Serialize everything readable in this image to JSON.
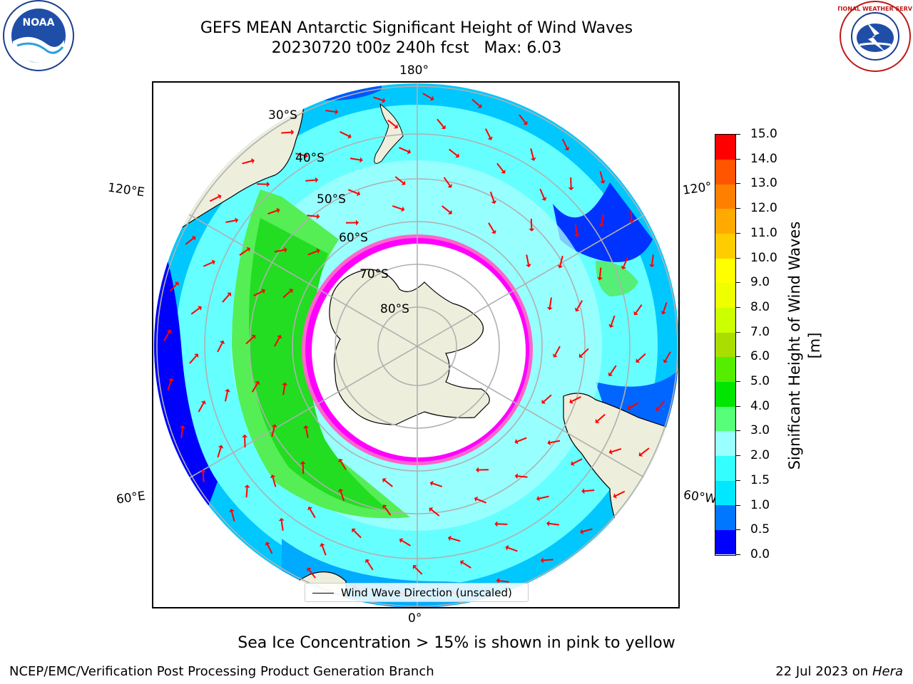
{
  "title": {
    "line1": "GEFS MEAN Antarctic Significant Height of Wind Waves",
    "line2": "20230720 t00z 240h fcst   Max: 6.03"
  },
  "logos": {
    "left_icon": "noaa-logo",
    "left_text": "NOAA",
    "right_icon": "nws-logo",
    "right_text": "NATIONAL WEATHER SERVICE"
  },
  "map": {
    "projection": "south-polar-stereographic",
    "longitude_labels": {
      "top": "180°",
      "bottom": "0°",
      "left_upper": "120°E",
      "left_lower": "60°E",
      "right_upper": "120°",
      "right_lower": "60°W"
    },
    "latitude_labels": [
      "30°S",
      "40°S",
      "50°S",
      "60°S",
      "70°S",
      "80°S"
    ],
    "colors": {
      "land": "#eeeedc",
      "ice_shelf": "#ffffff",
      "arrow": "#ff0000",
      "grid": "#b0b0b0",
      "sea_ice_edge": [
        "#ff00ff",
        "#ff66cc",
        "#ffcc00"
      ]
    },
    "legend_text": "Wind Wave Direction (unscaled)"
  },
  "colorbar": {
    "label": "Significant Height of Wind Waves [m]",
    "ticks": [
      "0.0",
      "0.5",
      "1.0",
      "1.5",
      "2.0",
      "3.0",
      "4.0",
      "5.0",
      "6.0",
      "7.0",
      "8.0",
      "9.0",
      "10.0",
      "11.0",
      "12.0",
      "13.0",
      "14.0",
      "15.0"
    ],
    "colors": [
      "#0000ff",
      "#0077ff",
      "#00e8ff",
      "#33ffff",
      "#99ffff",
      "#55ff77",
      "#00e600",
      "#55ee00",
      "#aadd00",
      "#ccff00",
      "#eeff00",
      "#ffff00",
      "#ffcc00",
      "#ffaa00",
      "#ff8000",
      "#ff5500",
      "#ff0000"
    ]
  },
  "caption": "Sea Ice Concentration > 15% is shown in pink to yellow",
  "footer": {
    "left": "NCEP/EMC/Verification Post Processing Product Generation Branch",
    "right_prefix": "22 Jul 2023 on ",
    "right_host": "Hera"
  }
}
